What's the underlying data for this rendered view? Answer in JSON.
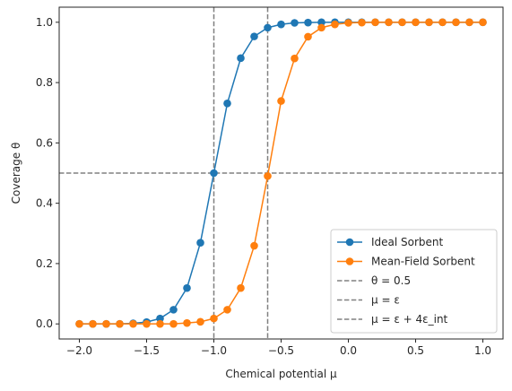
{
  "chart_data": {
    "type": "line",
    "title": "",
    "xlabel": "Chemical potential μ",
    "ylabel": "Coverage θ",
    "xlim": [
      -2.15,
      1.15
    ],
    "ylim": [
      -0.05,
      1.05
    ],
    "xticks": [
      -2.0,
      -1.5,
      -1.0,
      -0.5,
      0.0,
      0.5,
      1.0
    ],
    "xtick_labels": [
      "−2.0",
      "−1.5",
      "−1.0",
      "−0.5",
      "0.0",
      "0.5",
      "1.0"
    ],
    "yticks": [
      0.0,
      0.2,
      0.4,
      0.6,
      0.8,
      1.0
    ],
    "ytick_labels": [
      "0.0",
      "0.2",
      "0.4",
      "0.6",
      "0.8",
      "1.0"
    ],
    "grid": false,
    "legend_position": "lower-right",
    "x": [
      -2.0,
      -1.9,
      -1.8,
      -1.7,
      -1.6,
      -1.5,
      -1.4,
      -1.3,
      -1.2,
      -1.1,
      -1.0,
      -0.9,
      -0.8,
      -0.7,
      -0.6,
      -0.5,
      -0.4,
      -0.3,
      -0.2,
      -0.1,
      0.0,
      0.1,
      0.2,
      0.3,
      0.4,
      0.5,
      0.6,
      0.7,
      0.8,
      0.9,
      1.0
    ],
    "series": [
      {
        "name": "Ideal Sorbent",
        "color": "#1f77b4",
        "values": [
          0.0,
          0.0,
          0.0,
          0.0,
          0.002,
          0.006,
          0.018,
          0.047,
          0.119,
          0.269,
          0.5,
          0.731,
          0.881,
          0.953,
          0.982,
          0.993,
          0.998,
          0.999,
          1.0,
          1.0,
          1.0,
          1.0,
          1.0,
          1.0,
          1.0,
          1.0,
          1.0,
          1.0,
          1.0,
          1.0,
          1.0
        ]
      },
      {
        "name": "Mean-Field Sorbent",
        "color": "#ff7f0e",
        "values": [
          0.0,
          0.0,
          0.0,
          0.0,
          0.0,
          0.0,
          0.0,
          0.0,
          0.003,
          0.007,
          0.018,
          0.047,
          0.119,
          0.259,
          0.49,
          0.739,
          0.88,
          0.952,
          0.982,
          0.993,
          0.998,
          0.999,
          1.0,
          1.0,
          1.0,
          1.0,
          1.0,
          1.0,
          1.0,
          1.0,
          1.0
        ]
      }
    ],
    "reference_lines": [
      {
        "orientation": "horizontal",
        "value": 0.5,
        "label": "θ = 0.5",
        "color": "#808080"
      },
      {
        "orientation": "vertical",
        "value": -1.0,
        "label": "μ = ε",
        "color": "#808080"
      },
      {
        "orientation": "vertical",
        "value": -0.6,
        "label": "μ = ε + 4ε_int",
        "color": "#808080"
      }
    ],
    "legend": [
      {
        "label": "Ideal Sorbent",
        "kind": "line-marker",
        "color": "#1f77b4"
      },
      {
        "label": "Mean-Field Sorbent",
        "kind": "line-marker",
        "color": "#ff7f0e"
      },
      {
        "label": "θ = 0.5",
        "kind": "dashed",
        "color": "#808080"
      },
      {
        "label": "μ = ε",
        "kind": "dashed",
        "color": "#808080"
      },
      {
        "label": "μ = ε + 4ε_int",
        "kind": "dashed",
        "color": "#808080"
      }
    ]
  }
}
